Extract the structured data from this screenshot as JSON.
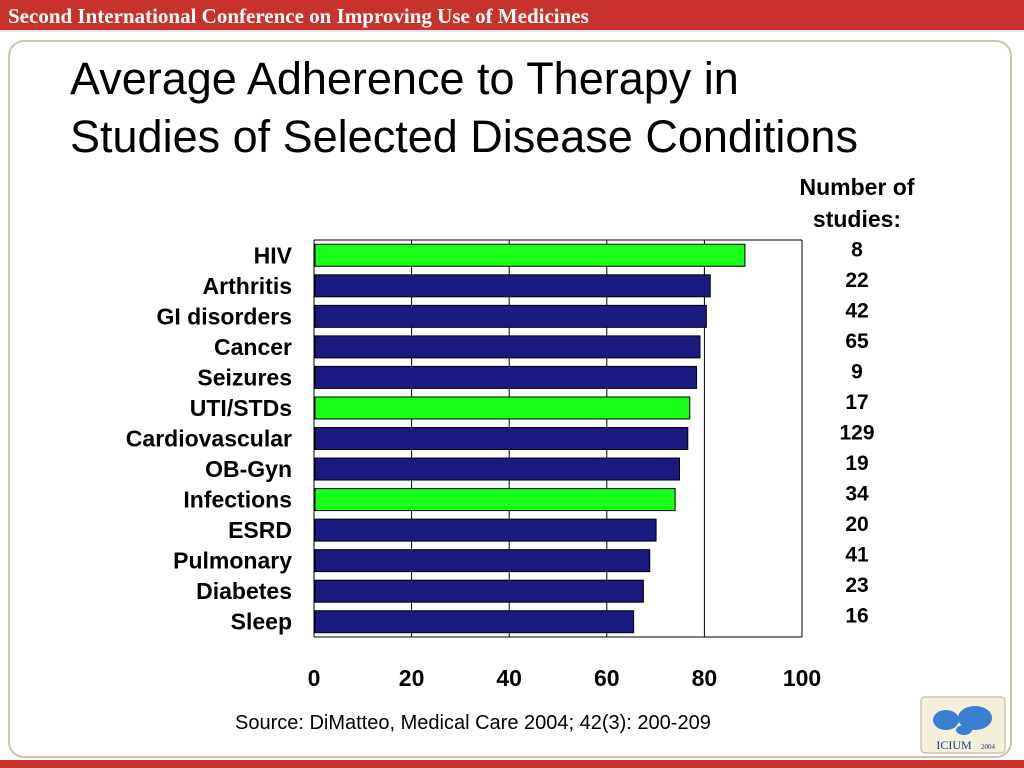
{
  "header": {
    "banner": "Second International Conference on Improving Use of Medicines"
  },
  "slide": {
    "title_line1": "Average Adherence to Therapy in",
    "title_line2": "Studies of Selected Disease Conditions",
    "studies_heading_line1": "Number of",
    "studies_heading_line2": "studies:",
    "source": "Source: DiMatteo, Medical Care 2004; 42(3): 200-209"
  },
  "logo": {
    "text": "ICIUM",
    "year": "2004"
  },
  "colors": {
    "banner": "#c8322d",
    "bar_navy": "#1a1a80",
    "bar_green": "#1aff1a"
  },
  "chart_data": {
    "type": "bar",
    "orientation": "horizontal",
    "categories": [
      "HIV",
      "Arthritis",
      "GI disorders",
      "Cancer",
      "Seizures",
      "UTI/STDs",
      "Cardiovascular",
      "OB-Gyn",
      "Infections",
      "ESRD",
      "Pulmonary",
      "Diabetes",
      "Sleep"
    ],
    "values": [
      88.3,
      81.2,
      80.4,
      79.1,
      78.4,
      77.0,
      76.6,
      74.9,
      74.0,
      70.1,
      68.8,
      67.5,
      65.5
    ],
    "highlight": [
      true,
      false,
      false,
      false,
      false,
      true,
      false,
      false,
      true,
      false,
      false,
      false,
      false
    ],
    "studies": [
      "8",
      "22",
      "42",
      "65",
      "9",
      "17",
      "129",
      "19",
      "34",
      "20",
      "41",
      "23",
      "16"
    ],
    "xlim": [
      0,
      100
    ],
    "xticks": [
      "0",
      "20",
      "40",
      "60",
      "80",
      "100"
    ],
    "grid": "vertical"
  }
}
